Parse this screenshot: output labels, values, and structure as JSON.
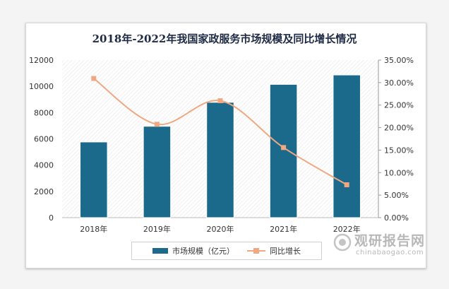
{
  "chart_data": {
    "type": "bar",
    "title": "2018年-2022年我国家政服务市场规模及同比增长情况",
    "categories": [
      "2018年",
      "2019年",
      "2020年",
      "2021年",
      "2022年"
    ],
    "series": [
      {
        "name": "市场规模（亿元）",
        "type": "bar",
        "axis": "left",
        "color": "#1c6a8b",
        "values": [
          5762,
          6957,
          8782,
          10149,
          10866
        ]
      },
      {
        "name": "同比增长",
        "type": "line",
        "axis": "right",
        "color": "#f0a882",
        "values": [
          0.3091,
          0.2074,
          0.2597,
          0.1557,
          0.073
        ]
      }
    ],
    "y_left": {
      "min": 0,
      "max": 12000,
      "ticks": [
        "0",
        "2000",
        "4000",
        "6000",
        "8000",
        "10000",
        "12000"
      ]
    },
    "y_right": {
      "min": 0,
      "max": 0.35,
      "ticks": [
        "0.00%",
        "5.00%",
        "10.00%",
        "15.00%",
        "20.00%",
        "25.00%",
        "30.00%",
        "35.00%"
      ]
    },
    "legend_position": "bottom"
  },
  "watermark": {
    "main": "观研报告网",
    "sub": "chinabaogao.com"
  }
}
